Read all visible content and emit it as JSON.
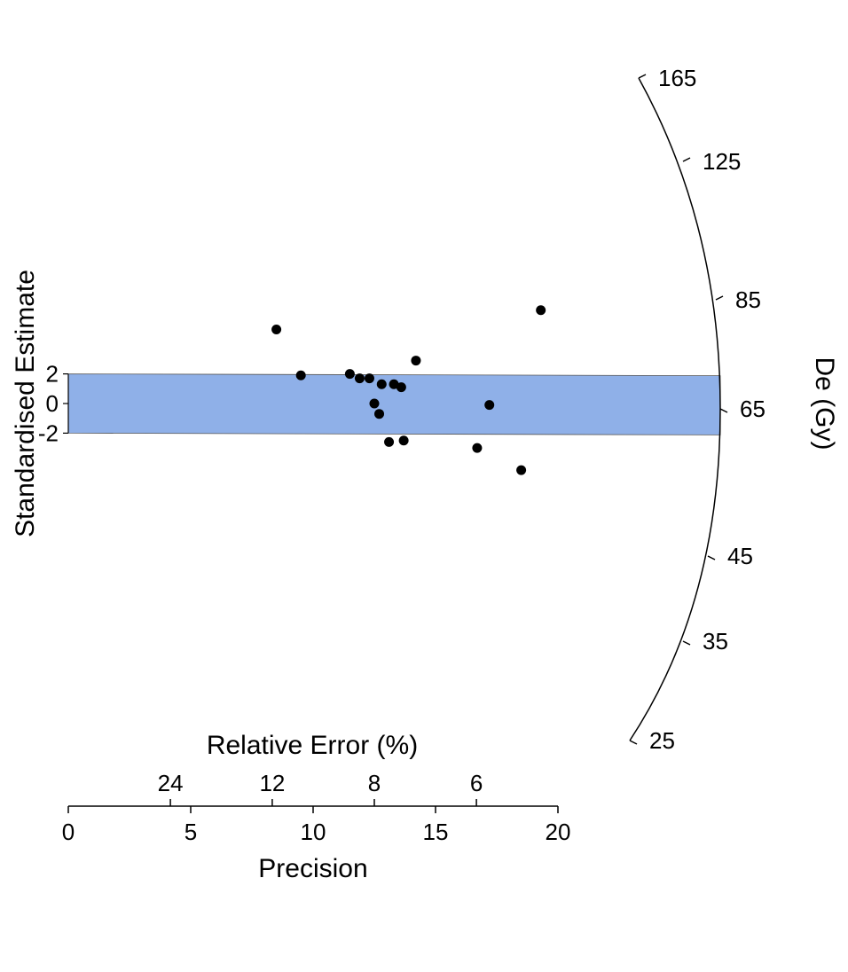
{
  "chart_data": {
    "type": "scatter",
    "subtype": "radial plot",
    "band_color": "#8fb0e8",
    "point_color": "#000000",
    "x_axis": {
      "label": "Precision",
      "ticks": [
        "0",
        "5",
        "10",
        "15",
        "20"
      ],
      "range": [
        0,
        20
      ]
    },
    "x2_axis": {
      "label": "Relative Error (%)",
      "ticks": [
        "24",
        "12",
        "8",
        "6"
      ],
      "tick_precision": [
        4.17,
        8.33,
        12.5,
        16.67
      ]
    },
    "y_axis": {
      "label": "Standardised Estimate",
      "ticks": [
        "2",
        "0",
        "-2"
      ],
      "band": [
        -2,
        2
      ]
    },
    "z_axis": {
      "label": "De (Gy)",
      "ticks": [
        "165",
        "125",
        "85",
        "65",
        "45",
        "35",
        "25"
      ],
      "values": [
        165,
        125,
        85,
        65,
        45,
        35,
        25
      ],
      "range": [
        25,
        165
      ],
      "log_scale": true,
      "central_value": 65
    },
    "points": [
      {
        "x": 8.5,
        "y": 5.0
      },
      {
        "x": 9.5,
        "y": 1.9
      },
      {
        "x": 11.5,
        "y": 2.0
      },
      {
        "x": 11.9,
        "y": 1.7
      },
      {
        "x": 12.3,
        "y": 1.7
      },
      {
        "x": 12.5,
        "y": 0.0
      },
      {
        "x": 12.7,
        "y": -0.7
      },
      {
        "x": 12.8,
        "y": 1.3
      },
      {
        "x": 13.1,
        "y": -2.6
      },
      {
        "x": 13.3,
        "y": 1.3
      },
      {
        "x": 13.6,
        "y": 1.1
      },
      {
        "x": 13.7,
        "y": -2.5
      },
      {
        "x": 14.2,
        "y": 2.9
      },
      {
        "x": 16.7,
        "y": -3.0
      },
      {
        "x": 17.2,
        "y": -0.1
      },
      {
        "x": 18.5,
        "y": -4.5
      },
      {
        "x": 19.3,
        "y": 6.3
      }
    ]
  }
}
